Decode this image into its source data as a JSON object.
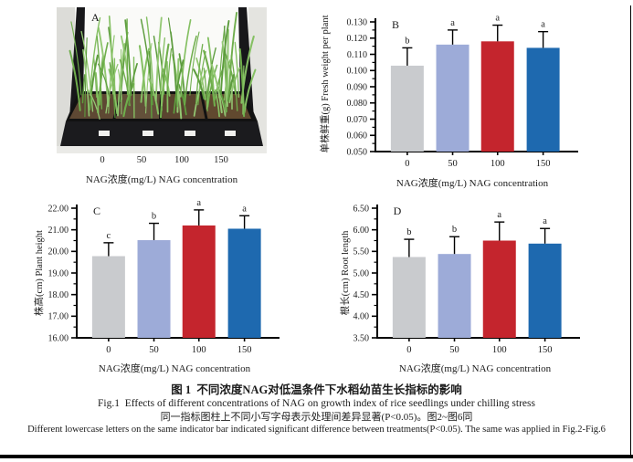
{
  "figure": {
    "panel_a_label": "A",
    "photo_xticks": [
      "0",
      "50",
      "100",
      "150"
    ],
    "photo_xlabel": "NAG浓度(mg/L) NAG concentration"
  },
  "caption": {
    "title_zh": "图 1  不同浓度NAG对低温条件下水稻幼苗生长指标的影响",
    "title_en": "Fig.1  Effects of different concentrations of NAG on growth index of rice seedlings under chilling stress",
    "note_zh": "同一指标图柱上不同小写字母表示处理间差异显著(P<0.05)。图2~图6同",
    "note_en": "Different lowercase letters on the same indicator bar indicated significant difference between treatments(P<0.05). The same was applied in Fig.2-Fig.6"
  },
  "colors": {
    "bar_gray": "#c9cbce",
    "bar_lavender": "#9dabd8",
    "bar_red": "#c4252d",
    "bar_blue": "#1e69af",
    "axis": "#000000"
  },
  "chart_data": [
    {
      "panel": "B",
      "type": "bar",
      "categories": [
        "0",
        "50",
        "100",
        "150"
      ],
      "values": [
        0.103,
        0.116,
        0.118,
        0.114
      ],
      "errors_up": [
        0.011,
        0.009,
        0.01,
        0.01
      ],
      "sig_letters": [
        "b",
        "a",
        "a",
        "a"
      ],
      "ylabel_zh": "单株鲜重(g)",
      "ylabel_en": "Fresh weight per plant",
      "xlabel": "NAG浓度(mg/L) NAG concentration",
      "ylim": [
        0.05,
        0.13
      ],
      "ytick_step": 0.01,
      "decimals": 3,
      "grid": false,
      "legend": "none",
      "bar_colors": [
        "#c9cbce",
        "#9dabd8",
        "#c4252d",
        "#1e69af"
      ]
    },
    {
      "panel": "C",
      "type": "bar",
      "categories": [
        "0",
        "50",
        "100",
        "150"
      ],
      "values": [
        19.78,
        20.52,
        21.2,
        21.05
      ],
      "errors_up": [
        0.62,
        0.78,
        0.72,
        0.6
      ],
      "sig_letters": [
        "c",
        "b",
        "a",
        "a"
      ],
      "ylabel_zh": "株高(cm)",
      "ylabel_en": "Plant height",
      "xlabel": "NAG浓度(mg/L) NAG concentration",
      "ylim": [
        16.0,
        22.0
      ],
      "ytick_step": 1.0,
      "decimals": 2,
      "grid": false,
      "legend": "none",
      "bar_colors": [
        "#c9cbce",
        "#9dabd8",
        "#c4252d",
        "#1e69af"
      ]
    },
    {
      "panel": "D",
      "type": "bar",
      "categories": [
        "0",
        "50",
        "100",
        "150"
      ],
      "values": [
        5.37,
        5.44,
        5.75,
        5.68
      ],
      "errors_up": [
        0.41,
        0.4,
        0.43,
        0.35
      ],
      "sig_letters": [
        "b",
        "b",
        "a",
        "a"
      ],
      "ylabel_zh": "根长(cm)",
      "ylabel_en": "Root length",
      "xlabel": "NAG浓度(mg/L) NAG concentration",
      "ylim": [
        3.5,
        6.5
      ],
      "ytick_step": 0.5,
      "decimals": 2,
      "grid": false,
      "legend": "none",
      "bar_colors": [
        "#c9cbce",
        "#9dabd8",
        "#c4252d",
        "#1e69af"
      ]
    }
  ]
}
